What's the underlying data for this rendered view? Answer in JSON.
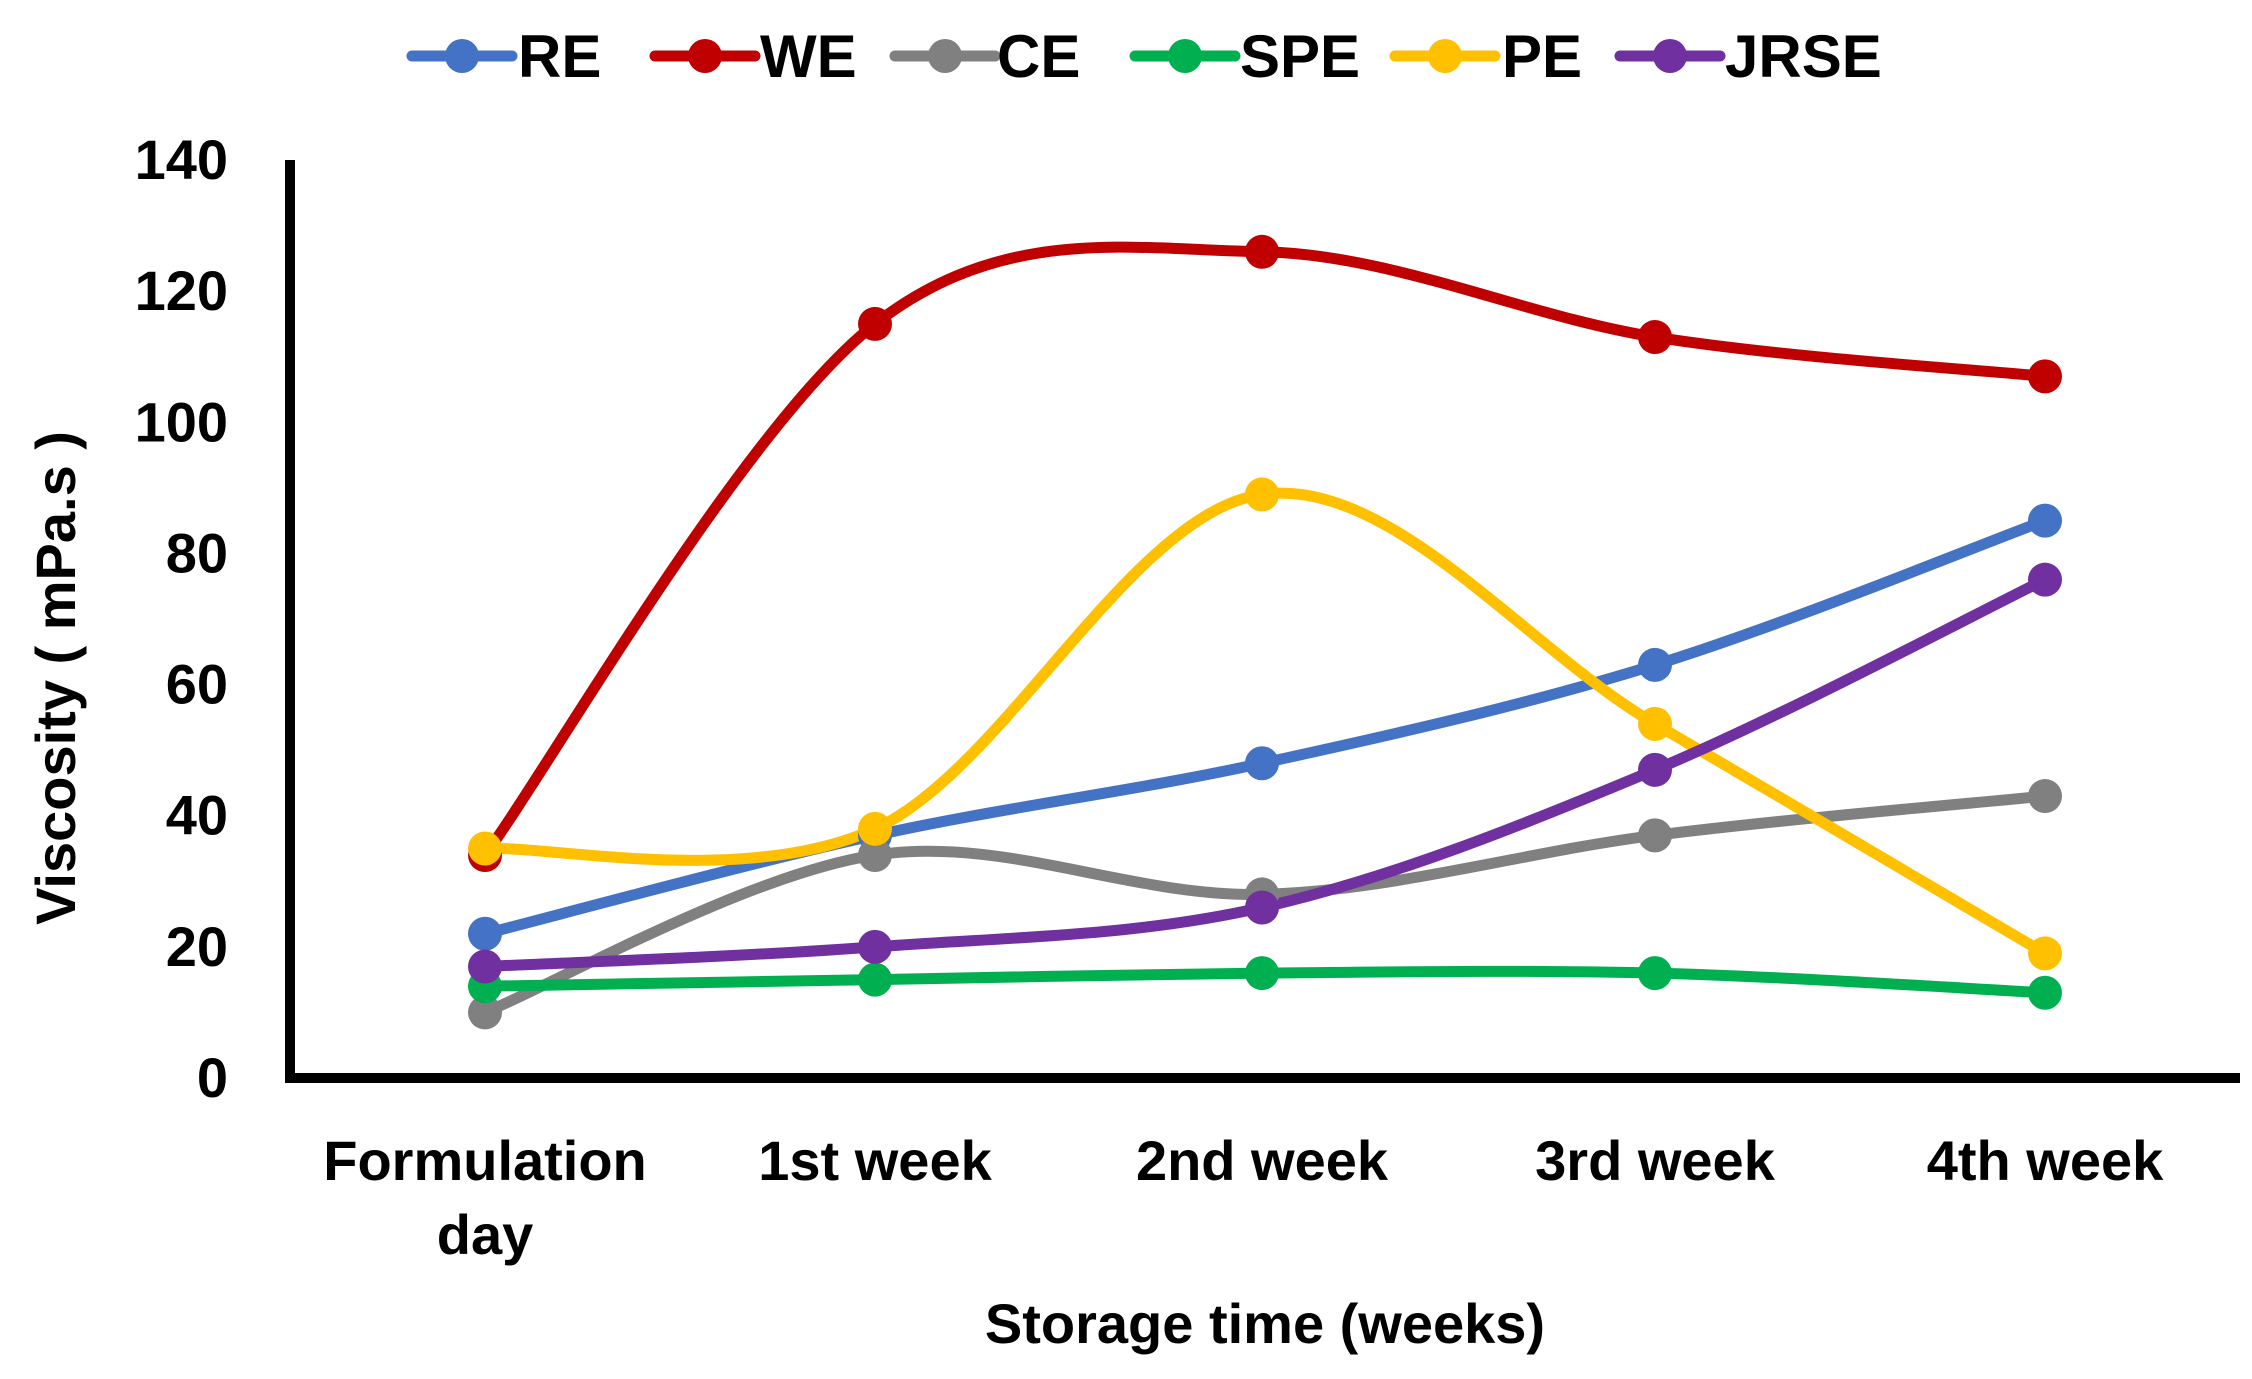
{
  "chart_data": {
    "type": "line",
    "title": "",
    "xlabel": "Storage time (weeks)",
    "ylabel": "Viscosity ( mPa.s )",
    "ylim": [
      0,
      140
    ],
    "yticks": [
      0,
      20,
      40,
      60,
      80,
      100,
      120,
      140
    ],
    "ytick_labels": [
      "0",
      "20",
      "40",
      "60",
      "80",
      "100",
      "120",
      "140"
    ],
    "categories": [
      [
        "Formulation",
        "day"
      ],
      [
        "1st week"
      ],
      [
        "2nd week"
      ],
      [
        "3rd week"
      ],
      [
        "4th week"
      ]
    ],
    "legend_position": "top",
    "grid": false,
    "smooth": true,
    "series": [
      {
        "name": "RE",
        "color": "#4472C4",
        "values": [
          22,
          37,
          48,
          63,
          85
        ]
      },
      {
        "name": "WE",
        "color": "#C00000",
        "values": [
          34,
          115,
          126,
          113,
          107
        ]
      },
      {
        "name": "CE",
        "color": "#808080",
        "values": [
          10,
          34,
          28,
          37,
          43
        ]
      },
      {
        "name": "SPE",
        "color": "#00B050",
        "values": [
          14,
          15,
          16,
          16,
          13
        ]
      },
      {
        "name": "PE",
        "color": "#FFC000",
        "values": [
          35,
          38,
          89,
          54,
          19
        ]
      },
      {
        "name": "JRSE",
        "color": "#7030A0",
        "values": [
          17,
          20,
          26,
          47,
          76
        ]
      }
    ]
  }
}
